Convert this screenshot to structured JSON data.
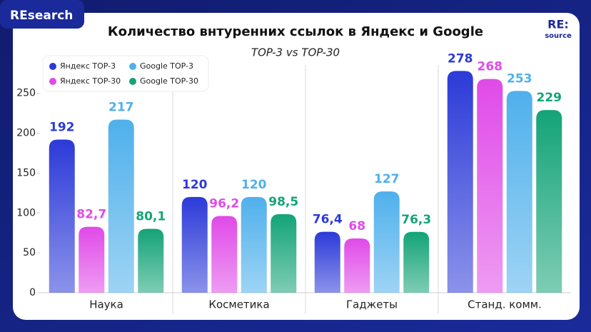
{
  "header": {
    "brand": "REsearch",
    "logo_main": "RE:",
    "logo_sub": "source"
  },
  "chart_data": {
    "type": "bar",
    "title": "Количество внтуренних ссылок в Яндекс и Google",
    "subtitle": "TOP-3 vs TOP-30",
    "categories": [
      "Наука",
      "Косметика",
      "Гаджеты",
      "Станд. комм."
    ],
    "series": [
      {
        "name": "Яндекс TOP-3",
        "color": "#2c3ad8",
        "values": [
          192,
          120,
          76.4,
          278
        ],
        "value_labels": [
          "192",
          "120",
          "76,4",
          "278"
        ]
      },
      {
        "name": "Яндекс TOP-30",
        "color": "#e04ae8",
        "values": [
          82.7,
          96.2,
          68,
          268
        ],
        "value_labels": [
          "82,7",
          "96,2",
          "68",
          "268"
        ]
      },
      {
        "name": "Google TOP-3",
        "color": "#4fb0ec",
        "values": [
          217,
          120,
          127,
          253
        ],
        "value_labels": [
          "217",
          "120",
          "127",
          "253"
        ]
      },
      {
        "name": "Google TOP-30",
        "color": "#14a377",
        "values": [
          80.1,
          98.5,
          76.3,
          229
        ],
        "value_labels": [
          "80,1",
          "98,5",
          "76,3",
          "229"
        ]
      }
    ],
    "ylim": [
      0,
      290
    ],
    "yticks": [
      0,
      50,
      100,
      150,
      200,
      250
    ],
    "grid": false,
    "legend": "top-left"
  }
}
